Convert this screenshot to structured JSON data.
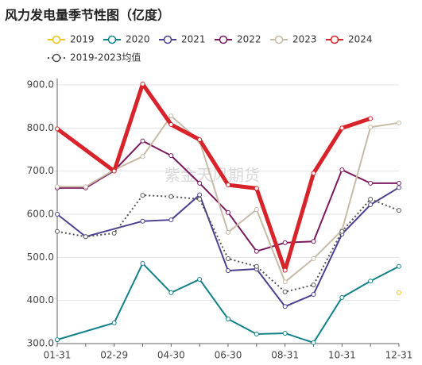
{
  "chart_data": {
    "type": "line",
    "title": "风力发电量季节性图（亿度）",
    "watermark": "紫金天风期货",
    "categories": [
      "01-31",
      null,
      "02-29",
      null,
      "04-30",
      null,
      "06-30",
      null,
      "08-31",
      null,
      "10-31",
      null,
      "12-31"
    ],
    "ylim": [
      300,
      900
    ],
    "yticks": [
      {
        "value": 300,
        "label": "300.0"
      },
      {
        "value": 400,
        "label": "400.0"
      },
      {
        "value": 500,
        "label": "500.0"
      },
      {
        "value": 600,
        "label": "600.0"
      },
      {
        "value": 700,
        "label": "700.0"
      },
      {
        "value": 800,
        "label": "800.0"
      },
      {
        "value": 900,
        "label": "900.0"
      }
    ],
    "grid": true,
    "connect_nulls": true,
    "series": [
      {
        "name": "2019",
        "color": "#f2c318",
        "values": [
          null,
          null,
          null,
          null,
          null,
          null,
          null,
          null,
          null,
          null,
          null,
          null,
          418
        ]
      },
      {
        "name": "2020",
        "color": "#138189",
        "values": [
          309,
          null,
          348,
          486,
          418,
          449,
          357,
          322,
          324,
          302,
          407,
          445,
          479
        ]
      },
      {
        "name": "2021",
        "color": "#4d3f91",
        "values": [
          600,
          548,
          null,
          584,
          587,
          645,
          469,
          473,
          386,
          414,
          554,
          622,
          662
        ]
      },
      {
        "name": "2022",
        "color": "#7b1a5e",
        "values": [
          661,
          661,
          701,
          770,
          736,
          672,
          604,
          514,
          534,
          537,
          703,
          672,
          672
        ]
      },
      {
        "name": "2023",
        "color": "#c8bba7",
        "values": [
          664,
          664,
          703,
          734,
          828,
          770,
          558,
          611,
          443,
          497,
          563,
          802,
          812
        ]
      },
      {
        "name": "2024",
        "color": "#d9232b",
        "emphasis": true,
        "values": [
          798,
          null,
          700,
          902,
          808,
          773,
          668,
          660,
          470,
          695,
          800,
          822,
          null
        ]
      },
      {
        "name": "2019-2023均值",
        "color": "#555555",
        "dotted": true,
        "values": [
          560,
          548,
          556,
          644,
          641,
          635,
          497,
          479,
          420,
          436,
          560,
          635,
          609
        ]
      }
    ]
  }
}
